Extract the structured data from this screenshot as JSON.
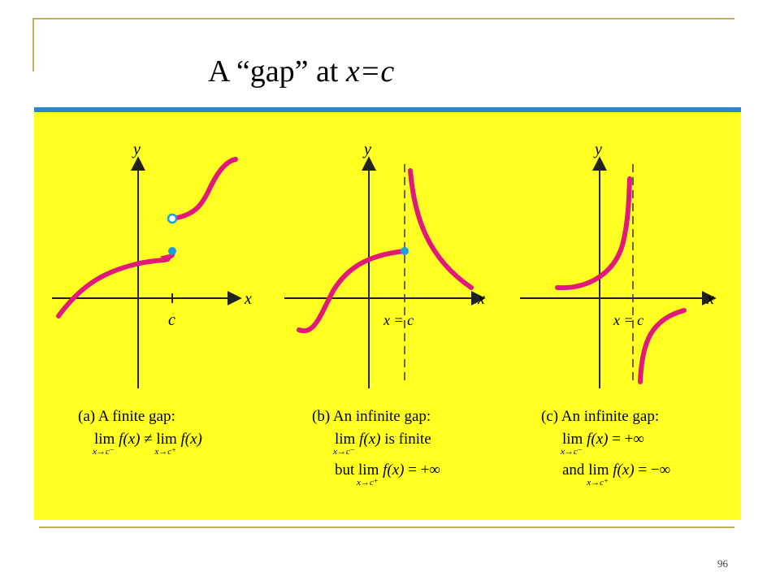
{
  "slide": {
    "title_prefix": "A “gap” at ",
    "title_var": "x=c",
    "page_number": "96"
  },
  "colors": {
    "panel_background": "#ffff22",
    "panel_top_border": "#2f86c8",
    "curve": "#e0197a",
    "point": "#1aa0e0",
    "axis": "#222222",
    "frame_lines": "#c8ae5a"
  },
  "graphs": [
    {
      "id": "a",
      "axis_label_x": "x",
      "axis_label_y": "y",
      "tick_label": "c",
      "caption": {
        "line1": "(a) A finite gap:",
        "lim_word": "lim",
        "left_sub": "x→c⁻",
        "fx": "f(x)",
        "neq": "≠",
        "right_sub": "x→c⁺"
      }
    },
    {
      "id": "b",
      "axis_label_x": "x",
      "axis_label_y": "y",
      "tick_label": "x = c",
      "caption": {
        "line1": "(b) An infinite gap:",
        "lim_word": "lim",
        "left_sub": "x→c⁻",
        "fx": "f(x)",
        "finite_text": "is finite",
        "but_word": "but",
        "right_sub": "x→c⁺",
        "right_value": "= +∞"
      }
    },
    {
      "id": "c",
      "axis_label_x": "x",
      "axis_label_y": "y",
      "tick_label": "x = c",
      "caption": {
        "line1": "(c) An infinite gap:",
        "lim_word": "lim",
        "left_sub": "x→c⁻",
        "fx": "f(x)",
        "left_value": "= +∞",
        "and_word": "and",
        "right_sub": "x→c⁺",
        "right_value": "= −∞"
      }
    }
  ]
}
